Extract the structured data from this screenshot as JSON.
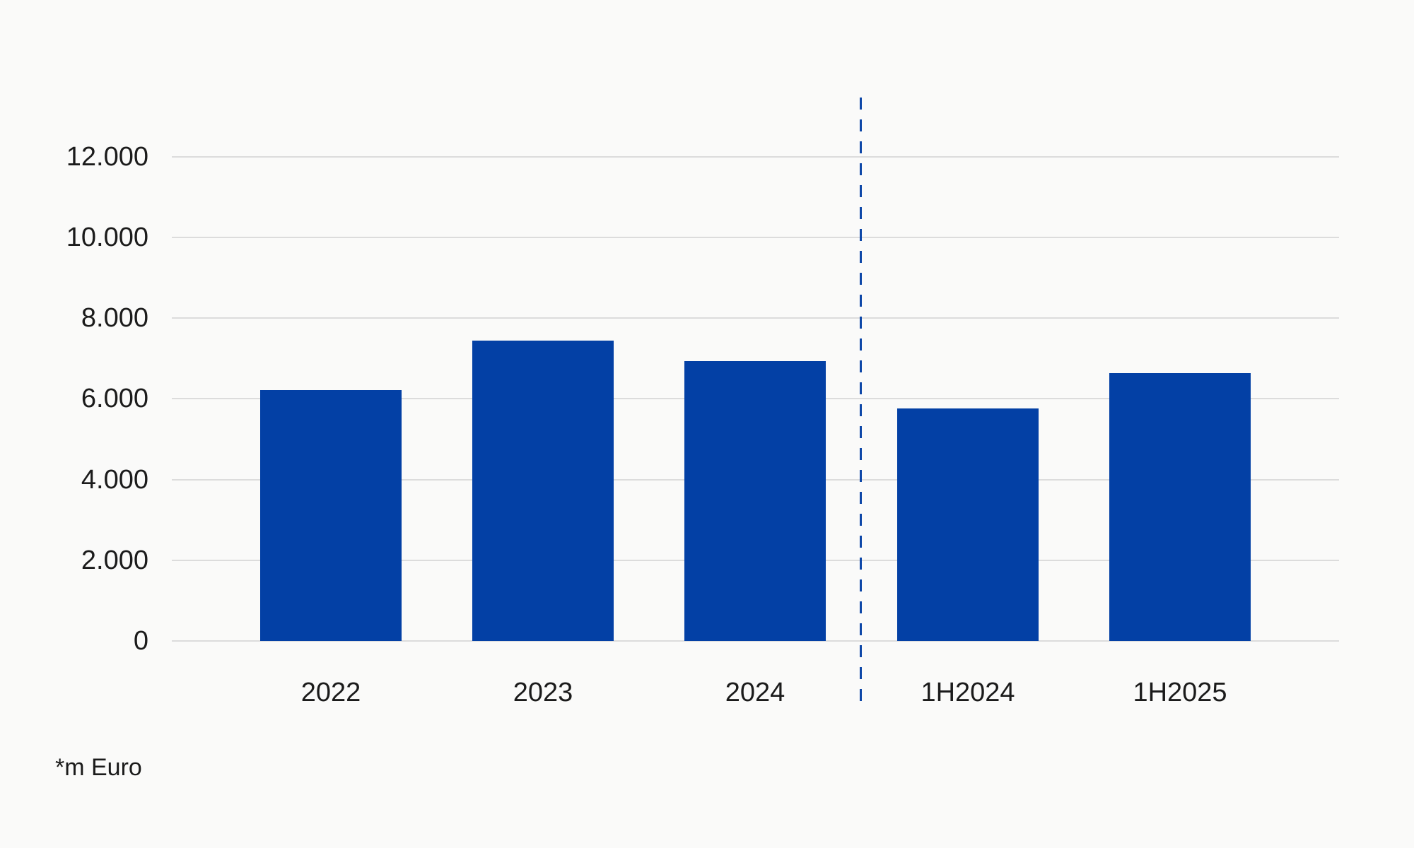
{
  "chart_data": {
    "type": "bar",
    "categories": [
      "2022",
      "2023",
      "2024",
      "1H2024",
      "1H2025"
    ],
    "values": [
      6210,
      7450,
      6940,
      5770,
      6630
    ],
    "title": "",
    "xlabel": "",
    "ylabel": "",
    "unit_note": "*m Euro",
    "yticks": [
      0,
      2000,
      4000,
      6000,
      8000,
      10000,
      12000
    ],
    "ytick_labels": [
      "0",
      "2.000",
      "4.000",
      "6.000",
      "8.000",
      "10.000",
      "12.000"
    ],
    "ylim": [
      0,
      13450
    ],
    "grid": true,
    "legend_position": "none",
    "separator_after_index": 2,
    "colors": {
      "bar": "#0340A5",
      "separator_line": "#0D47A8",
      "gridline": "#DCDCDC",
      "background": "#FAFAF9",
      "text": "#1B1B1B"
    }
  }
}
